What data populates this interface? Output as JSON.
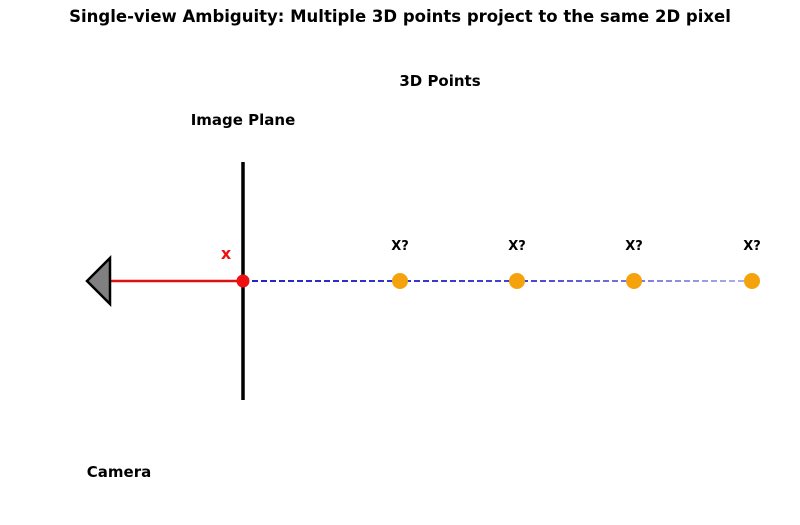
{
  "title": "Single-view Ambiguity: Multiple 3D points project to the same 2D pixel",
  "image_plane_label": "Image Plane",
  "points_header": "3D Points",
  "camera_label": "Camera",
  "pixel_label": "x",
  "point_labels": [
    "X?",
    "X?",
    "X?",
    "X?"
  ],
  "colors": {
    "points": "#f5a30d",
    "points_header": "#f5a30d",
    "pixel": "#ee1111",
    "ray_to_camera": "#dd1111",
    "back_projection_ray": "#2222cc",
    "camera_fill": "#808080",
    "image_plane": "#000000"
  }
}
